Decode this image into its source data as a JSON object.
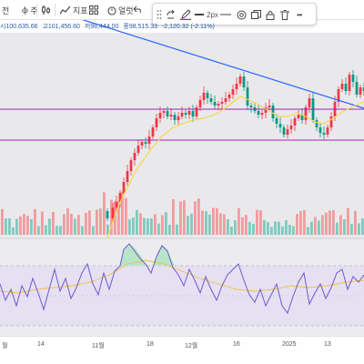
{
  "toolbar": {
    "item1_label": "전",
    "item2_label": "Ⲫ 주",
    "indicator_label": "지표",
    "alert_label": "얼럿"
  },
  "draw_toolbar": {
    "line_width_label": "2px",
    "more_label": "•••"
  },
  "ohlc": {
    "open": "시100,635.66",
    "high": "고101,456.60",
    "low": "저98,444.00",
    "close": "종98,515.33",
    "change": "-2,120.32 (-2.11%)"
  },
  "x_axis_labels": [
    "월",
    "14",
    "11월",
    "18",
    "12월",
    "16",
    "2025",
    "13"
  ],
  "colors": {
    "up": "#f23645",
    "down": "#089981",
    "trendline": "#2962ff",
    "horizontal_line": "#9c27b0",
    "ma": "#f6d84a",
    "rsi": "#6a5acd",
    "rsi_ma": "#f0c040",
    "rsi_band": "#ede7f6",
    "pane_bg": "#e9e9ec"
  },
  "icons": [
    "bar-chart-icon",
    "indicator-icon",
    "grid-icon",
    "alert-icon",
    "undo-icon",
    "redo-icon",
    "drag-icon",
    "pencil-icon",
    "line-style-icon",
    "target-icon",
    "lock-icon",
    "copy-icon",
    "trash-icon",
    "more-icon"
  ]
}
